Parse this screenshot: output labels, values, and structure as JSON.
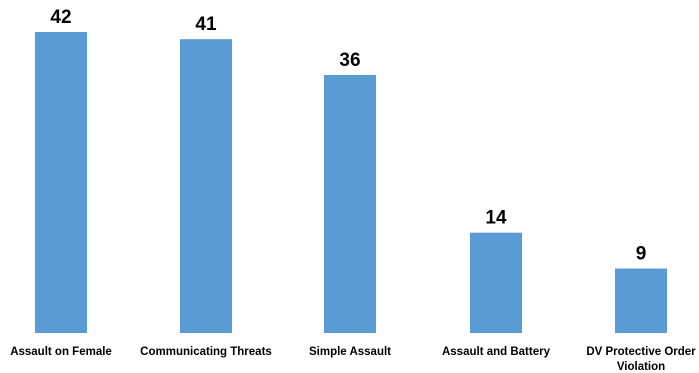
{
  "chart_data": {
    "type": "bar",
    "categories": [
      [
        "Assault on Female"
      ],
      [
        "Communicating Threats"
      ],
      [
        "Simple Assault"
      ],
      [
        "Assault and Battery"
      ],
      [
        "DV Protective Order",
        "Violation"
      ]
    ],
    "values": [
      42,
      41,
      36,
      14,
      9
    ],
    "data_labels": [
      "42",
      "41",
      "36",
      "14",
      "9"
    ],
    "title": "",
    "xlabel": "",
    "ylabel": "",
    "ylim": [
      0,
      42
    ],
    "grid": false,
    "legend": "none",
    "bar_color": "#5B9BD5"
  }
}
